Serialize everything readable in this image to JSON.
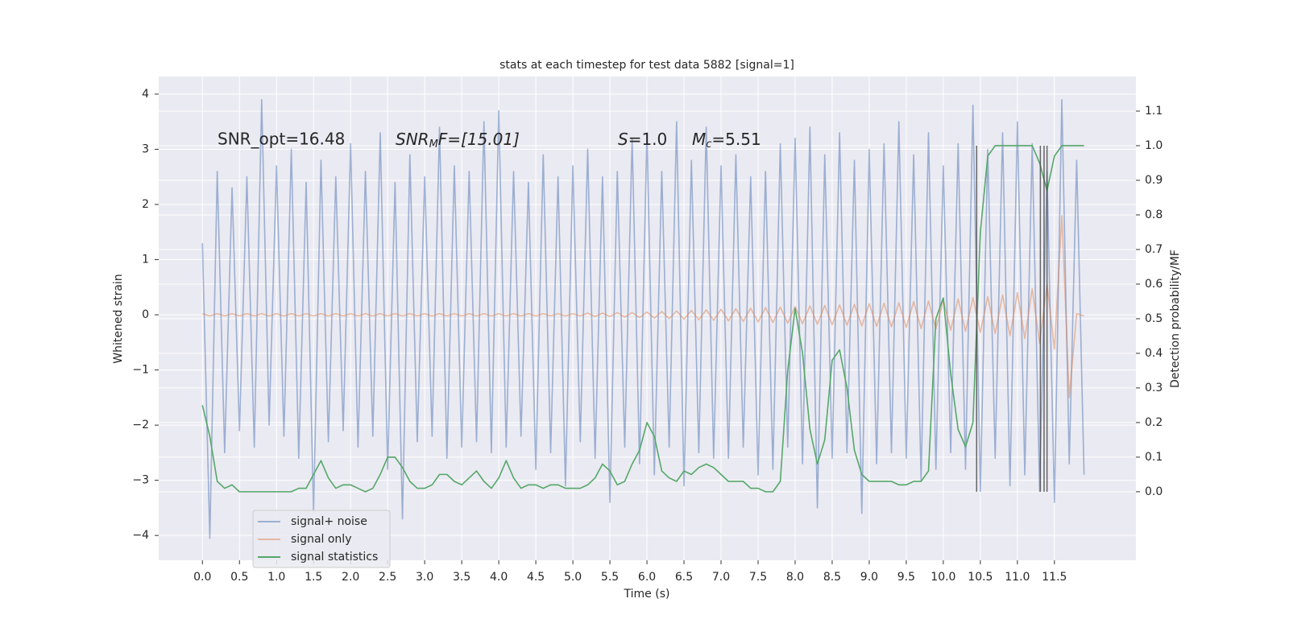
{
  "chart_data": {
    "type": "line",
    "title": "stats at each timestep for test data 5882 [signal=1]",
    "xlabel": "Time (s)",
    "ylabel": "Whitened strain",
    "y2label": "Detection probability/MF",
    "annotations": {
      "snr_opt": "SNR_opt=16.48",
      "snr_mf": {
        "base": "SNR",
        "sub": "M",
        "rest": "F=[15.01]"
      },
      "s": {
        "base": "S",
        "rest": "=1.0"
      },
      "mc": {
        "base": "M",
        "sub": "c",
        "rest": "=5.51"
      }
    },
    "x": [
      0.0,
      0.1,
      0.2,
      0.3,
      0.4,
      0.5,
      0.6,
      0.7,
      0.8,
      0.9,
      1.0,
      1.1,
      1.2,
      1.3,
      1.4,
      1.5,
      1.6,
      1.7,
      1.8,
      1.9,
      2.0,
      2.1,
      2.2,
      2.3,
      2.4,
      2.5,
      2.6,
      2.7,
      2.8,
      2.9,
      3.0,
      3.1,
      3.2,
      3.3,
      3.4,
      3.5,
      3.6,
      3.7,
      3.8,
      3.9,
      4.0,
      4.1,
      4.2,
      4.3,
      4.4,
      4.5,
      4.6,
      4.7,
      4.8,
      4.9,
      5.0,
      5.1,
      5.2,
      5.3,
      5.4,
      5.5,
      5.6,
      5.7,
      5.8,
      5.9,
      6.0,
      6.1,
      6.2,
      6.3,
      6.4,
      6.5,
      6.6,
      6.7,
      6.8,
      6.9,
      7.0,
      7.1,
      7.2,
      7.3,
      7.4,
      7.5,
      7.6,
      7.7,
      7.8,
      7.9,
      8.0,
      8.1,
      8.2,
      8.3,
      8.4,
      8.5,
      8.6,
      8.7,
      8.8,
      8.9,
      9.0,
      9.1,
      9.2,
      9.3,
      9.4,
      9.5,
      9.6,
      9.7,
      9.8,
      9.9,
      10.0,
      10.1,
      10.2,
      10.3,
      10.4,
      10.5,
      10.6,
      10.7,
      10.8,
      10.9,
      11.0,
      11.1,
      11.2,
      11.3,
      11.4,
      11.5,
      11.6,
      11.7,
      11.8,
      11.9
    ],
    "series": [
      {
        "name": "signal+ noise",
        "color": "#4c72b0",
        "alpha": 0.5,
        "values": [
          1.3,
          -4.05,
          2.6,
          -2.5,
          2.3,
          -2.1,
          2.5,
          -2.4,
          3.9,
          -2.0,
          2.7,
          -2.2,
          3.0,
          -2.6,
          2.4,
          -3.6,
          2.8,
          -2.3,
          2.5,
          -2.1,
          3.1,
          -2.4,
          2.6,
          -2.2,
          3.3,
          -2.8,
          2.4,
          -3.7,
          2.9,
          -2.3,
          2.5,
          -2.2,
          3.4,
          -2.6,
          2.7,
          -2.4,
          2.6,
          -2.3,
          3.5,
          -2.5,
          3.7,
          -2.4,
          2.6,
          -2.2,
          2.4,
          -2.8,
          2.9,
          -2.5,
          2.5,
          -3.1,
          2.7,
          -2.3,
          3.0,
          -2.6,
          2.5,
          -3.4,
          2.6,
          -2.4,
          3.2,
          -2.7,
          3.3,
          -2.9,
          2.6,
          -2.4,
          3.5,
          -3.1,
          2.8,
          -2.5,
          3.4,
          -2.6,
          2.7,
          -2.6,
          2.9,
          -2.4,
          2.5,
          -2.9,
          2.6,
          -2.8,
          3.1,
          -2.4,
          3.2,
          -2.7,
          3.4,
          -3.5,
          2.9,
          -2.6,
          3.3,
          -2.5,
          2.8,
          -3.6,
          3.0,
          -2.7,
          3.1,
          -2.5,
          3.5,
          -2.6,
          2.9,
          -3.0,
          3.3,
          -2.8,
          2.7,
          -2.5,
          3.1,
          -2.8,
          3.8,
          -3.2,
          3.0,
          -2.6,
          3.3,
          -3.1,
          3.5,
          -2.9,
          3.1,
          -3.2,
          2.6,
          -3.4,
          3.9,
          -2.7,
          2.8,
          -2.9
        ]
      },
      {
        "name": "signal only",
        "color": "#dd8452",
        "alpha": 0.5,
        "values": [
          0.02,
          -0.02,
          0.02,
          -0.02,
          0.02,
          -0.02,
          0.02,
          -0.02,
          0.02,
          -0.02,
          0.02,
          -0.02,
          0.02,
          -0.02,
          0.02,
          -0.02,
          0.02,
          -0.02,
          0.02,
          -0.02,
          0.02,
          -0.02,
          0.02,
          -0.02,
          0.02,
          -0.02,
          0.02,
          -0.02,
          0.02,
          -0.02,
          0.02,
          -0.02,
          0.02,
          -0.02,
          0.02,
          -0.02,
          0.02,
          -0.02,
          0.02,
          -0.02,
          0.02,
          -0.02,
          0.02,
          -0.02,
          0.02,
          -0.02,
          0.02,
          -0.02,
          0.02,
          -0.02,
          0.02,
          -0.02,
          0.03,
          -0.03,
          0.03,
          -0.03,
          0.04,
          -0.04,
          0.04,
          -0.05,
          0.05,
          -0.06,
          0.06,
          -0.07,
          0.07,
          -0.08,
          0.08,
          -0.09,
          0.09,
          -0.1,
          0.1,
          -0.11,
          0.11,
          -0.12,
          0.12,
          -0.13,
          0.13,
          -0.14,
          0.14,
          -0.15,
          0.15,
          -0.16,
          0.16,
          -0.17,
          0.17,
          -0.18,
          0.18,
          -0.19,
          0.19,
          -0.2,
          0.2,
          -0.21,
          0.21,
          -0.22,
          0.22,
          -0.23,
          0.24,
          -0.25,
          0.25,
          -0.26,
          0.27,
          -0.28,
          0.29,
          -0.3,
          0.31,
          -0.32,
          0.33,
          -0.34,
          0.36,
          -0.38,
          0.4,
          -0.43,
          0.47,
          -0.52,
          0.56,
          -0.62,
          1.8,
          -1.5,
          0.02,
          -0.02
        ]
      },
      {
        "name": "signal statistics",
        "color": "#55a868",
        "axis": "y2",
        "values": [
          0.25,
          0.16,
          0.03,
          0.01,
          0.02,
          0.0,
          0.0,
          0.0,
          0.0,
          0.0,
          0.0,
          0.0,
          0.0,
          0.01,
          0.01,
          0.05,
          0.09,
          0.04,
          0.01,
          0.02,
          0.02,
          0.01,
          0.0,
          0.01,
          0.05,
          0.1,
          0.1,
          0.07,
          0.03,
          0.01,
          0.01,
          0.02,
          0.05,
          0.05,
          0.03,
          0.02,
          0.04,
          0.06,
          0.03,
          0.01,
          0.04,
          0.09,
          0.04,
          0.01,
          0.02,
          0.02,
          0.01,
          0.02,
          0.02,
          0.01,
          0.01,
          0.01,
          0.02,
          0.04,
          0.08,
          0.06,
          0.02,
          0.03,
          0.08,
          0.12,
          0.2,
          0.16,
          0.06,
          0.04,
          0.03,
          0.06,
          0.05,
          0.07,
          0.08,
          0.07,
          0.05,
          0.03,
          0.03,
          0.03,
          0.01,
          0.01,
          0.0,
          0.0,
          0.03,
          0.35,
          0.53,
          0.4,
          0.18,
          0.08,
          0.15,
          0.38,
          0.41,
          0.3,
          0.12,
          0.05,
          0.03,
          0.03,
          0.03,
          0.03,
          0.02,
          0.02,
          0.03,
          0.03,
          0.06,
          0.5,
          0.56,
          0.34,
          0.18,
          0.13,
          0.2,
          0.75,
          0.97,
          1.0,
          1.0,
          1.0,
          1.0,
          1.0,
          1.0,
          0.95,
          0.87,
          0.97,
          1.0,
          1.0,
          1.0,
          1.0
        ]
      }
    ],
    "vlines": {
      "x": [
        10.45,
        11.31,
        11.36,
        11.4
      ],
      "ymin": 0.0,
      "ymax": 1.0,
      "color": "#444444",
      "axis": "y2"
    },
    "xlim": [
      -0.59,
      12.6
    ],
    "ylim": [
      -4.45,
      4.32
    ],
    "y2lim": [
      -0.198,
      1.2
    ],
    "xticks": [
      {
        "value": 0,
        "label": "0.0"
      },
      0.5,
      {
        "value": 1,
        "label": "1.0"
      },
      1.5,
      {
        "value": 2,
        "label": "2.0"
      },
      2.5,
      {
        "value": 3,
        "label": "3.0"
      },
      3.5,
      {
        "value": 4,
        "label": "4.0"
      },
      4.5,
      {
        "value": 5,
        "label": "5.0"
      },
      5.5,
      {
        "value": 6,
        "label": "6.0"
      },
      6.5,
      {
        "value": 7,
        "label": "7.0"
      },
      7.5,
      {
        "value": 8,
        "label": "8.0"
      },
      8.5,
      {
        "value": 9,
        "label": "9.0"
      },
      9.5,
      {
        "value": 10,
        "label": "10.0"
      },
      10.5,
      {
        "value": 11,
        "label": "11.0"
      },
      11.5
    ],
    "yticks": [
      {
        "value": -4,
        "label": "−4"
      },
      {
        "value": -3,
        "label": "−3"
      },
      {
        "value": -2,
        "label": "−2"
      },
      {
        "value": -1,
        "label": "−1"
      },
      0,
      1,
      2,
      3,
      4
    ],
    "y2ticks": [
      {
        "value": 0,
        "label": "0.0"
      },
      0.1,
      0.2,
      0.3,
      0.4,
      0.5,
      0.6,
      0.7,
      0.8,
      0.9,
      {
        "value": 1,
        "label": "1.0"
      },
      1.1
    ],
    "grid": true,
    "legend": "lower left"
  }
}
